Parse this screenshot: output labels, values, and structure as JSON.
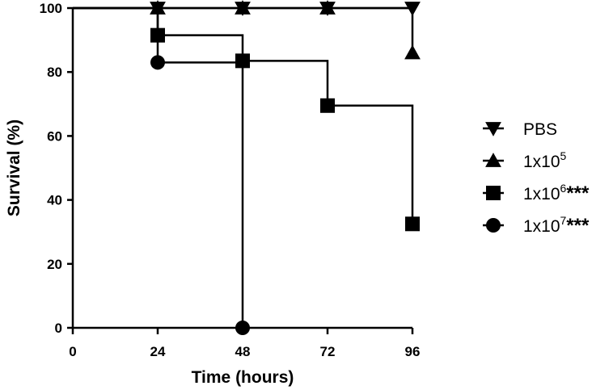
{
  "chart_data": {
    "type": "line",
    "step": true,
    "xlabel": "Time (hours)",
    "ylabel": "Survival (%)",
    "xlim": [
      0,
      96
    ],
    "ylim": [
      0,
      100
    ],
    "xticks": [
      0,
      24,
      48,
      72,
      96
    ],
    "yticks": [
      0,
      20,
      40,
      60,
      80,
      100
    ],
    "grid": false,
    "legend_position": "right",
    "series": [
      {
        "id": "pbs",
        "name": "PBS",
        "legend_base": "PBS",
        "legend_sup": "",
        "legend_stars": "",
        "marker": "triangle-down",
        "x": [
          0,
          24,
          48,
          72,
          96
        ],
        "y": [
          100,
          100,
          100,
          100,
          100
        ]
      },
      {
        "id": "s1e5",
        "name": "1x10^5",
        "legend_base": "1x10",
        "legend_sup": "5",
        "legend_stars": "",
        "marker": "triangle-up",
        "x": [
          0,
          24,
          48,
          72,
          96
        ],
        "y": [
          100,
          100,
          100,
          100,
          86
        ]
      },
      {
        "id": "s1e6",
        "name": "1x10^6***",
        "legend_base": "1x10",
        "legend_sup": "6",
        "legend_stars": "***",
        "marker": "square",
        "x": [
          0,
          24,
          48,
          72,
          96
        ],
        "y": [
          100,
          91.5,
          83.5,
          69.5,
          32.5
        ]
      },
      {
        "id": "s1e7",
        "name": "1x10^7***",
        "legend_base": "1x10",
        "legend_sup": "7",
        "legend_stars": "***",
        "marker": "circle",
        "x": [
          0,
          24,
          48
        ],
        "y": [
          100,
          83,
          0
        ]
      }
    ]
  }
}
